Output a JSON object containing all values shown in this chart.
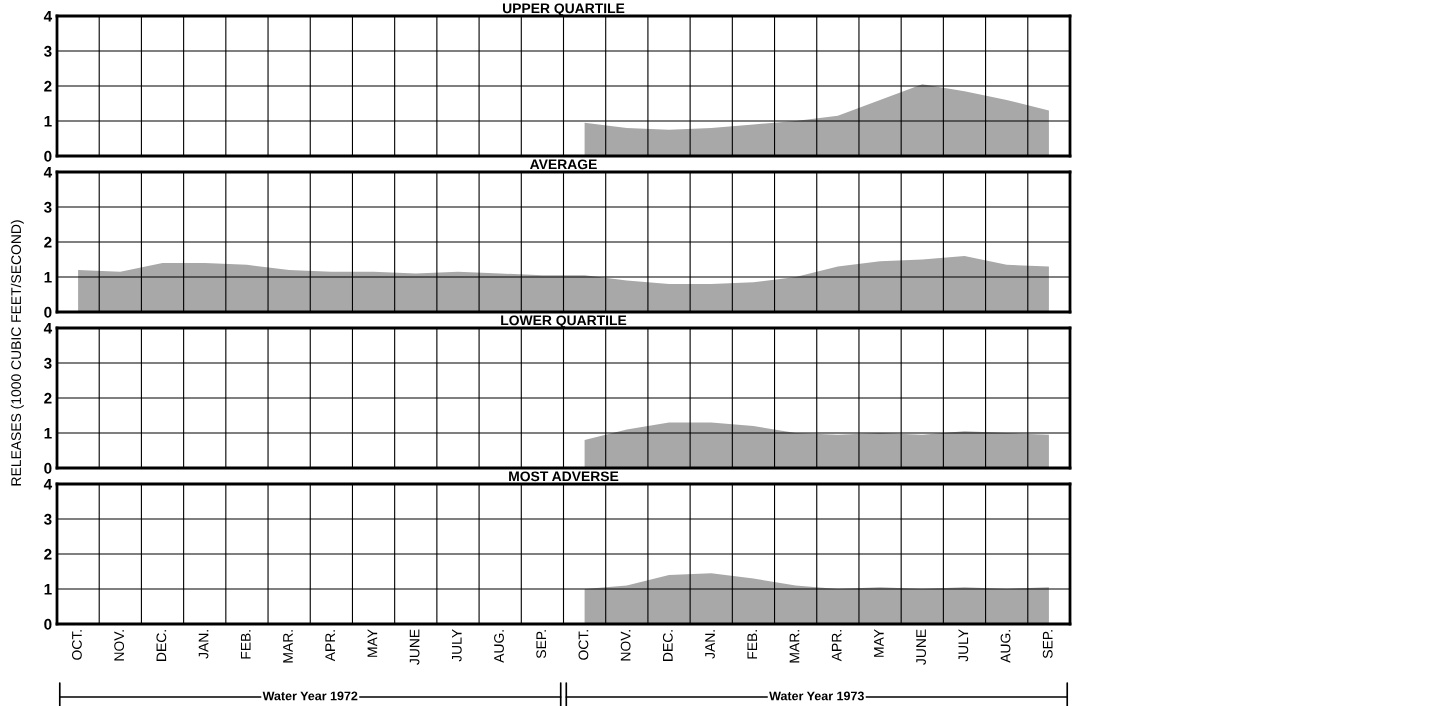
{
  "chart_data": [
    {
      "type": "area",
      "title": "UPPER QUARTILE",
      "ylabel": "RELEASES (1000 CUBIC FEET/SECOND)",
      "categories": [
        null,
        null,
        null,
        null,
        null,
        null,
        null,
        null,
        null,
        null,
        null,
        null,
        null,
        null,
        null,
        null,
        null,
        null,
        null,
        null,
        null,
        null,
        null,
        null
      ],
      "series": [
        {
          "color": "#a8a8a8",
          "values": [
            null,
            null,
            null,
            null,
            null,
            null,
            null,
            null,
            null,
            null,
            null,
            null,
            0.95,
            0.8,
            0.75,
            0.8,
            0.9,
            1.0,
            1.15,
            1.6,
            2.05,
            1.85,
            1.6,
            1.3
          ]
        }
      ],
      "ylim": [
        0,
        4
      ],
      "yticks": [
        0,
        1,
        2,
        3,
        4
      ],
      "grid": true,
      "tick_labels": "y"
    },
    {
      "type": "area",
      "title": "AVERAGE",
      "categories": [
        null,
        null,
        null,
        null,
        null,
        null,
        null,
        null,
        null,
        null,
        null,
        null,
        null,
        null,
        null,
        null,
        null,
        null,
        null,
        null,
        null,
        null,
        null,
        null
      ],
      "series": [
        {
          "color": "#a8a8a8",
          "values": [
            1.2,
            1.15,
            1.4,
            1.4,
            1.35,
            1.2,
            1.15,
            1.15,
            1.1,
            1.15,
            1.1,
            1.05,
            1.05,
            0.9,
            0.8,
            0.8,
            0.85,
            1.0,
            1.3,
            1.45,
            1.5,
            1.6,
            1.35,
            1.3
          ]
        }
      ],
      "ylim": [
        0,
        4
      ],
      "yticks": [
        0,
        1,
        2,
        3,
        4
      ],
      "grid": true,
      "tick_labels": "y"
    },
    {
      "type": "area",
      "title": "LOWER QUARTILE",
      "categories": [
        null,
        null,
        null,
        null,
        null,
        null,
        null,
        null,
        null,
        null,
        null,
        null,
        null,
        null,
        null,
        null,
        null,
        null,
        null,
        null,
        null,
        null,
        null,
        null
      ],
      "series": [
        {
          "color": "#a8a8a8",
          "values": [
            null,
            null,
            null,
            null,
            null,
            null,
            null,
            null,
            null,
            null,
            null,
            null,
            0.8,
            1.1,
            1.3,
            1.3,
            1.2,
            1.0,
            0.95,
            1.0,
            0.95,
            1.05,
            1.0,
            0.95
          ]
        }
      ],
      "ylim": [
        0,
        4
      ],
      "yticks": [
        0,
        1,
        2,
        3,
        4
      ],
      "grid": true,
      "tick_labels": "y"
    },
    {
      "type": "area",
      "title": "MOST ADVERSE",
      "categories": [
        "OCT.",
        "NOV.",
        "DEC.",
        "JAN.",
        "FEB.",
        "MAR.",
        "APR.",
        "MAY",
        "JUNE",
        "JULY",
        "AUG.",
        "SEP.",
        "OCT.",
        "NOV.",
        "DEC.",
        "JAN.",
        "FEB.",
        "MAR.",
        "APR.",
        "MAY",
        "JUNE",
        "JULY",
        "AUG.",
        "SEP."
      ],
      "series": [
        {
          "color": "#a8a8a8",
          "values": [
            null,
            null,
            null,
            null,
            null,
            null,
            null,
            null,
            null,
            null,
            null,
            null,
            1.0,
            1.1,
            1.4,
            1.45,
            1.3,
            1.1,
            1.0,
            1.05,
            1.0,
            1.05,
            1.0,
            1.05
          ]
        }
      ],
      "ylim": [
        0,
        4
      ],
      "yticks": [
        0,
        1,
        2,
        3,
        4
      ],
      "grid": true,
      "annotations": [
        "Water Year 1972",
        "Water Year 1973"
      ]
    }
  ]
}
